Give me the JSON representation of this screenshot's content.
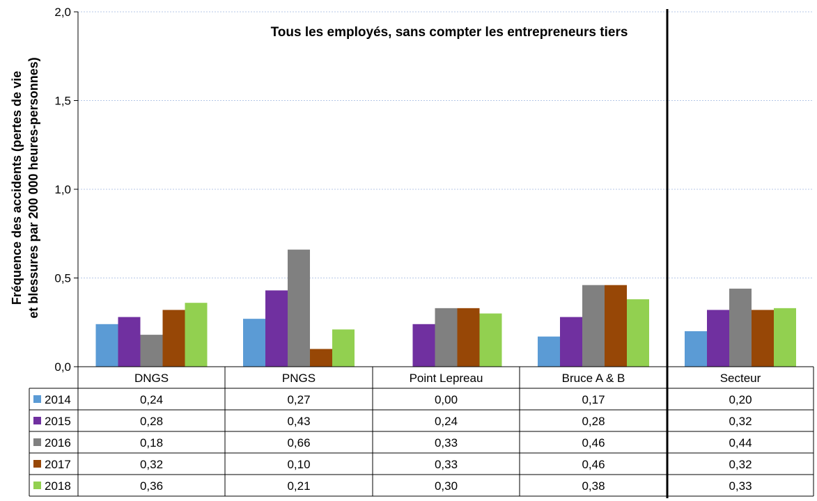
{
  "chart_data": {
    "type": "bar",
    "title": "Tous les employés, sans compter les entrepreneurs tiers",
    "ylabel_lines": [
      "Fréquence des accidents (pertes de vie",
      "et blessures par 200 000 heures-personnes)"
    ],
    "xlabel": "",
    "ylim": [
      0,
      2.0
    ],
    "yticks": [
      "0,0",
      "0,5",
      "1,0",
      "1,5",
      "2,0"
    ],
    "grid": true,
    "legend_placement": "data-table-left",
    "categories": [
      "DNGS",
      "PNGS",
      "Point Lepreau",
      "Bruce A & B",
      "Secteur"
    ],
    "series": [
      {
        "name": "2014",
        "color": "#5b9bd5",
        "values": [
          0.24,
          0.27,
          0.0,
          0.17,
          0.2
        ],
        "labels": [
          "0,24",
          "0,27",
          "0,00",
          "0,17",
          "0,20"
        ]
      },
      {
        "name": "2015",
        "color": "#7030a0",
        "values": [
          0.28,
          0.43,
          0.24,
          0.28,
          0.32
        ],
        "labels": [
          "0,28",
          "0,43",
          "0,24",
          "0,28",
          "0,32"
        ]
      },
      {
        "name": "2016",
        "color": "#808080",
        "values": [
          0.18,
          0.66,
          0.33,
          0.46,
          0.44
        ],
        "labels": [
          "0,18",
          "0,66",
          "0,33",
          "0,46",
          "0,44"
        ]
      },
      {
        "name": "2017",
        "color": "#974706",
        "values": [
          0.32,
          0.1,
          0.33,
          0.46,
          0.32
        ],
        "labels": [
          "0,32",
          "0,10",
          "0,33",
          "0,46",
          "0,32"
        ]
      },
      {
        "name": "2018",
        "color": "#92d050",
        "values": [
          0.36,
          0.21,
          0.3,
          0.38,
          0.33
        ],
        "labels": [
          "0,36",
          "0,21",
          "0,30",
          "0,38",
          "0,33"
        ]
      }
    ]
  }
}
